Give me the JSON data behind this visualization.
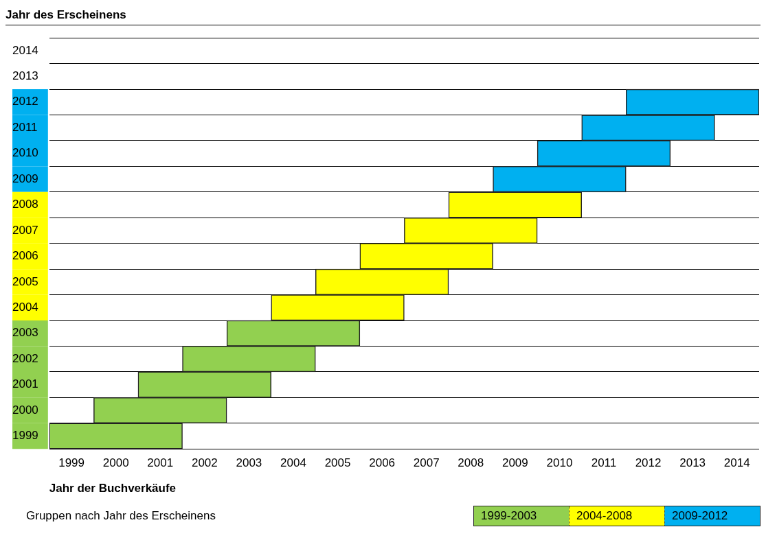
{
  "chart_data": {
    "type": "bar",
    "orientation": "horizontal",
    "ylabel": "Jahr des Erscheinens",
    "xlabel": "Jahr der Buchverkäufe",
    "legend_title": "Gruppen nach Jahr des Erscheinens",
    "legend": "bottom right",
    "grid": "y",
    "categories": [
      "2014",
      "2013",
      "2012",
      "2011",
      "2010",
      "2009",
      "2008",
      "2007",
      "2006",
      "2005",
      "2004",
      "2003",
      "2002",
      "2001",
      "2000",
      "1999"
    ],
    "xlim": [
      1998.5,
      2014.5
    ],
    "xticks": [
      1999,
      2000,
      2001,
      2002,
      2003,
      2004,
      2005,
      2006,
      2007,
      2008,
      2009,
      2010,
      2011,
      2012,
      2013,
      2014
    ],
    "series": [
      {
        "name": "1999-2003",
        "color": "#92d050",
        "values": [
          null,
          null,
          null,
          null,
          null,
          null,
          null,
          null,
          null,
          null,
          null,
          3,
          3,
          3,
          3,
          3
        ],
        "base": [
          null,
          null,
          null,
          null,
          null,
          null,
          null,
          null,
          null,
          null,
          null,
          2002.5,
          2001.5,
          2000.5,
          1999.5,
          1998.5
        ]
      },
      {
        "name": "2004-2008",
        "color": "#ffff00",
        "values": [
          null,
          null,
          null,
          null,
          null,
          null,
          3,
          3,
          3,
          3,
          3,
          null,
          null,
          null,
          null,
          null
        ],
        "base": [
          null,
          null,
          null,
          null,
          null,
          null,
          2007.5,
          2006.5,
          2005.5,
          2004.5,
          2003.5,
          null,
          null,
          null,
          null,
          null
        ]
      },
      {
        "name": "2009-2012",
        "color": "#00b0f0",
        "values": [
          null,
          null,
          3,
          3,
          3,
          3,
          null,
          null,
          null,
          null,
          null,
          null,
          null,
          null,
          null,
          null
        ],
        "base": [
          null,
          null,
          2011.5,
          2010.5,
          2009.5,
          2008.5,
          null,
          null,
          null,
          null,
          null,
          null,
          null,
          null,
          null,
          null
        ]
      }
    ]
  }
}
